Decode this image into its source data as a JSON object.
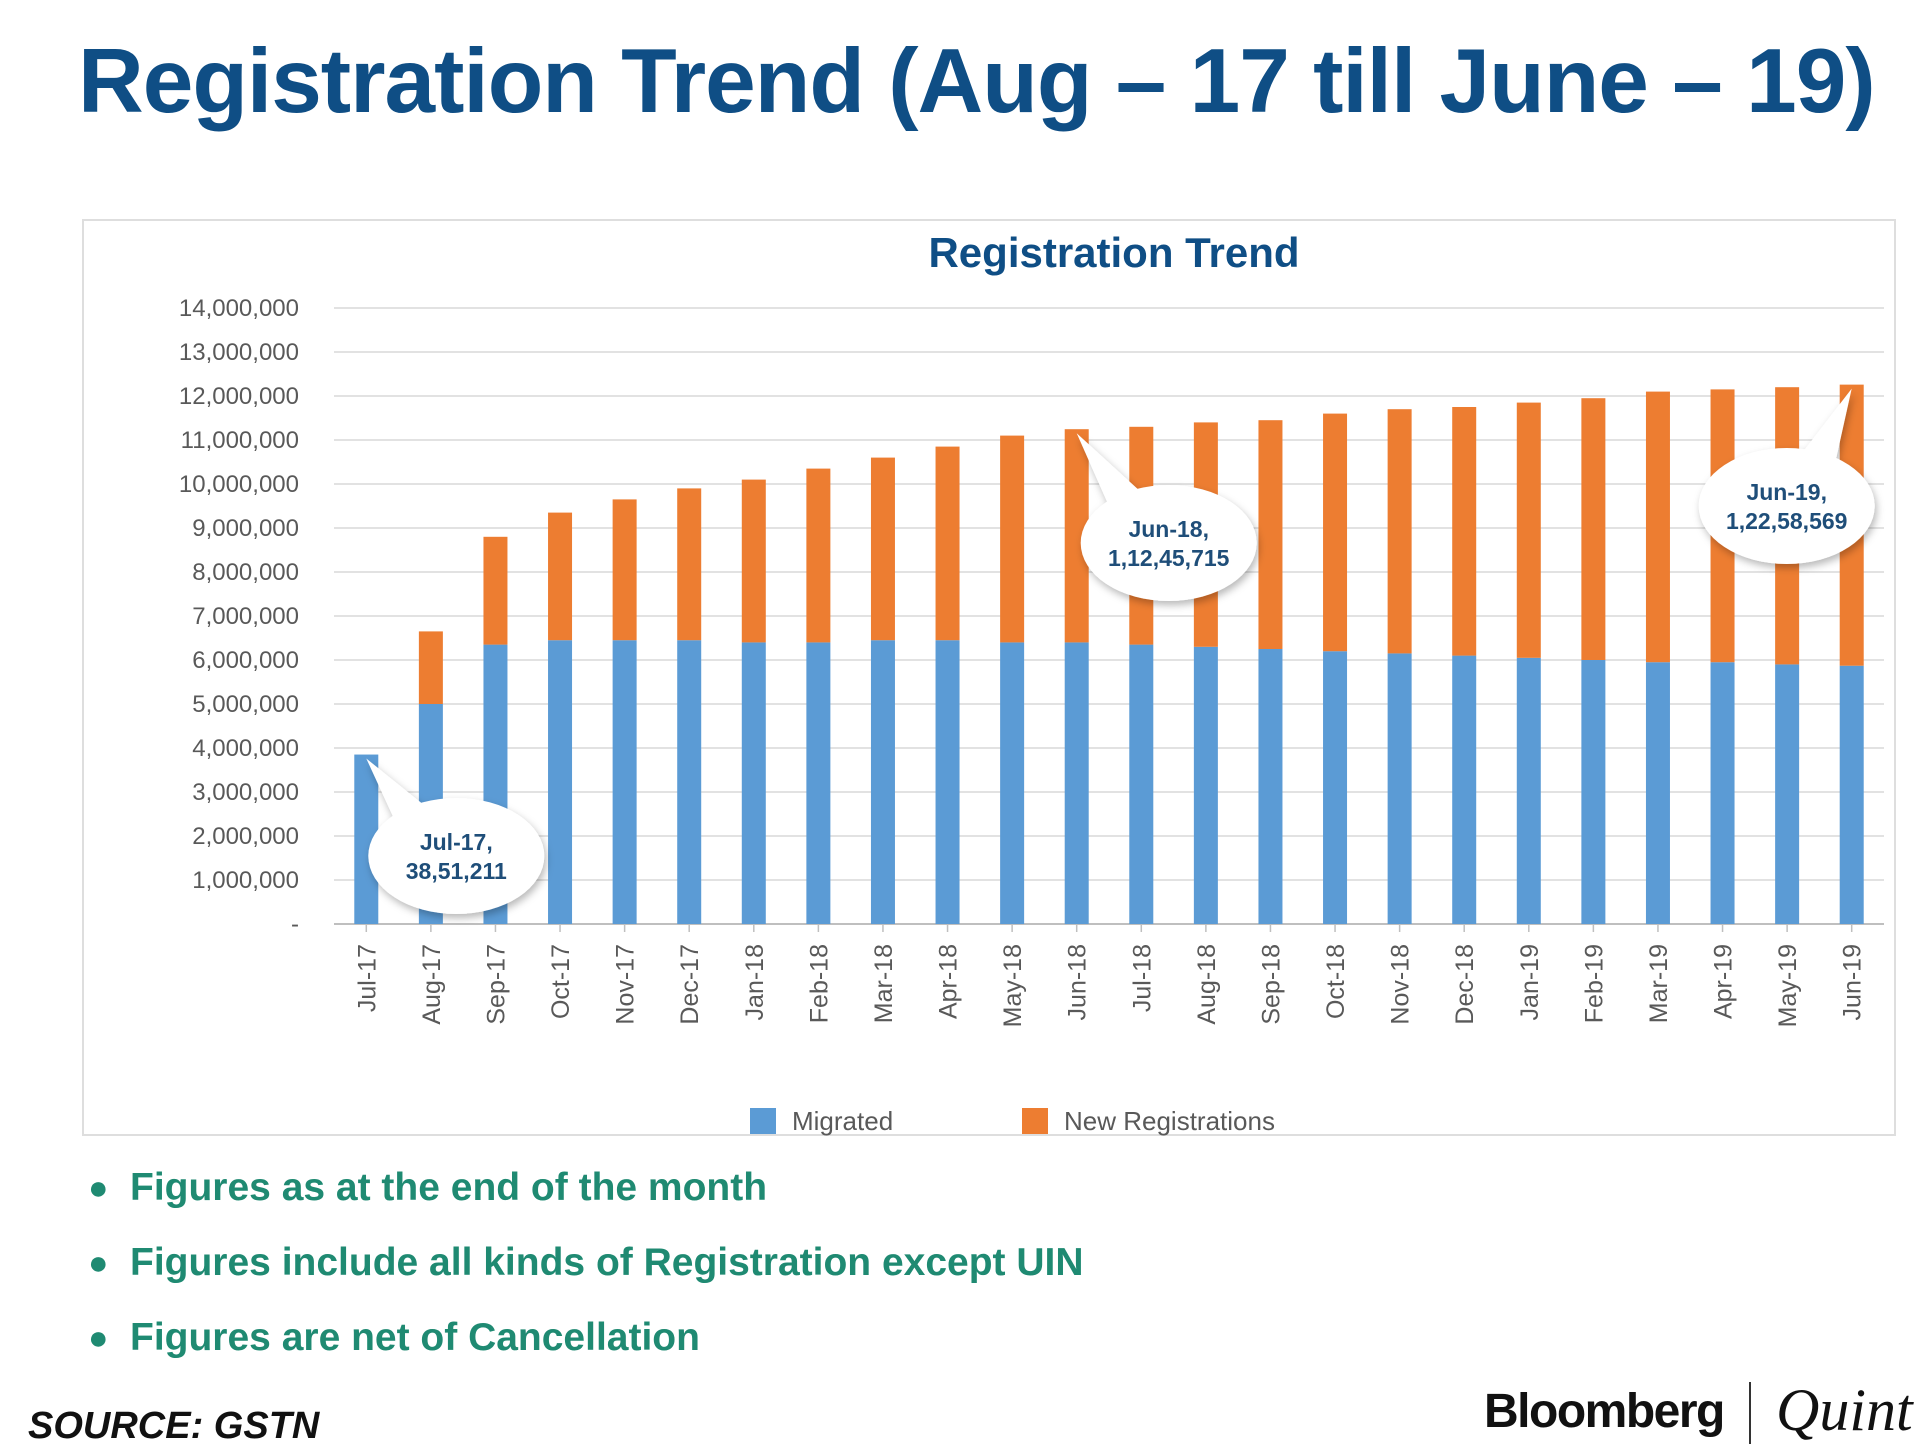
{
  "page": {
    "title": "Registration Trend (Aug – 17 till June – 19)",
    "notes": [
      "Figures as at the end of the month",
      "Figures include all kinds of Registration except UIN",
      "Figures are net of Cancellation"
    ],
    "source": "SOURCE: GSTN",
    "logo": {
      "brand": "Bloomberg",
      "sub": "Quint"
    }
  },
  "colors": {
    "title": "#0f4e85",
    "migrated": "#5b9bd5",
    "new_registrations": "#ed7d31",
    "notes": "#1f8a72",
    "callout_text": "#1f4e79"
  },
  "chart_data": {
    "type": "bar",
    "stacked": true,
    "title": "Registration Trend",
    "xlabel": "",
    "ylabel": "",
    "ylim": [
      0,
      14000000
    ],
    "yticks": [
      0,
      1000000,
      2000000,
      3000000,
      4000000,
      5000000,
      6000000,
      7000000,
      8000000,
      9000000,
      10000000,
      11000000,
      12000000,
      13000000,
      14000000
    ],
    "ytick_labels": [
      "-",
      "1,000,000",
      "2,000,000",
      "3,000,000",
      "4,000,000",
      "5,000,000",
      "6,000,000",
      "7,000,000",
      "8,000,000",
      "9,000,000",
      "10,000,000",
      "11,000,000",
      "12,000,000",
      "13,000,000",
      "14,000,000"
    ],
    "grid": true,
    "legend_position": "bottom",
    "categories": [
      "Jul-17",
      "Aug-17",
      "Sep-17",
      "Oct-17",
      "Nov-17",
      "Dec-17",
      "Jan-18",
      "Feb-18",
      "Mar-18",
      "Apr-18",
      "May-18",
      "Jun-18",
      "Jul-18",
      "Aug-18",
      "Sep-18",
      "Oct-18",
      "Nov-18",
      "Dec-18",
      "Jan-19",
      "Feb-19",
      "Mar-19",
      "Apr-19",
      "May-19",
      "Jun-19"
    ],
    "series": [
      {
        "name": "Migrated",
        "values": [
          3851211,
          5000000,
          6350000,
          6450000,
          6450000,
          6450000,
          6400000,
          6400000,
          6450000,
          6450000,
          6400000,
          6400000,
          6350000,
          6300000,
          6250000,
          6200000,
          6150000,
          6100000,
          6050000,
          6000000,
          5950000,
          5950000,
          5900000,
          5870000
        ]
      },
      {
        "name": "New Registrations",
        "values": [
          0,
          1650000,
          2450000,
          2900000,
          3200000,
          3450000,
          3700000,
          3950000,
          4150000,
          4400000,
          4700000,
          4845715,
          4950000,
          5100000,
          5200000,
          5400000,
          5550000,
          5650000,
          5800000,
          5950000,
          6150000,
          6200000,
          6300000,
          6388569
        ]
      }
    ],
    "annotations": [
      {
        "category": "Jul-17",
        "line1": "Jul-17,",
        "line2": "38,51,211"
      },
      {
        "category": "Jun-18",
        "line1": "Jun-18,",
        "line2": "1,12,45,715"
      },
      {
        "category": "Jun-19",
        "line1": "Jun-19,",
        "line2": "1,22,58,569"
      }
    ]
  }
}
